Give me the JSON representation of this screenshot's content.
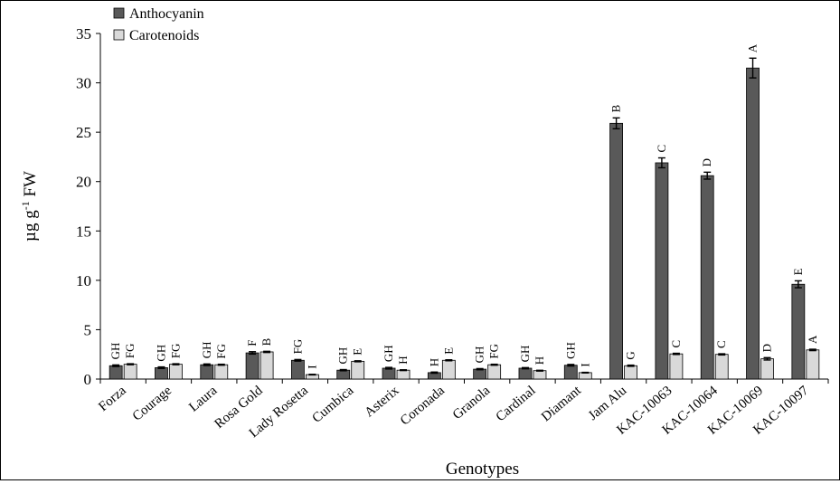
{
  "chart_data": {
    "type": "bar",
    "title": "",
    "xlabel": "Genotypes",
    "ylabel_main": "µg g",
    "ylabel_sup": "-1",
    "ylabel_tail": " FW",
    "ylim": [
      0,
      35
    ],
    "yticks": [
      0,
      5,
      10,
      15,
      20,
      25,
      30,
      35
    ],
    "grid": false,
    "legend_position": "top-left",
    "categories": [
      "Forza",
      "Courage",
      "Laura",
      "Rosa Gold",
      "Lady Rosetta",
      "Cumbica",
      "Asterix",
      "Coronada",
      "Granola",
      "Cardinal",
      "Diamant",
      "Jam Alu",
      "KAC-10063",
      "KAC-10064",
      "KAC-10069",
      "KAC-10097"
    ],
    "series": [
      {
        "name": "Anthocyanin",
        "color": "#595959",
        "values": [
          1.35,
          1.15,
          1.45,
          2.65,
          1.9,
          0.9,
          1.1,
          0.65,
          1.0,
          1.1,
          1.4,
          25.9,
          21.9,
          20.6,
          31.5,
          9.6
        ],
        "errors": [
          0.08,
          0.08,
          0.08,
          0.12,
          0.08,
          0.06,
          0.08,
          0.06,
          0.06,
          0.06,
          0.08,
          0.55,
          0.5,
          0.35,
          1.0,
          0.35
        ],
        "letters": [
          "GH",
          "GH",
          "GH",
          "F",
          "FG",
          "GH",
          "GH",
          "H",
          "GH",
          "GH",
          "GH",
          "B",
          "C",
          "D",
          "A",
          "E"
        ]
      },
      {
        "name": "Carotenoids",
        "color": "#d9d9d9",
        "values": [
          1.5,
          1.5,
          1.45,
          2.75,
          0.45,
          1.8,
          0.9,
          1.9,
          1.45,
          0.85,
          0.65,
          1.35,
          2.55,
          2.5,
          2.05,
          2.95
        ],
        "errors": [
          0.05,
          0.05,
          0.05,
          0.06,
          0.03,
          0.05,
          0.04,
          0.05,
          0.05,
          0.04,
          0.03,
          0.06,
          0.06,
          0.06,
          0.12,
          0.07
        ],
        "letters": [
          "FG",
          "FG",
          "FG",
          "B",
          "I",
          "E",
          "H",
          "E",
          "FG",
          "H",
          "I",
          "G",
          "C",
          "C",
          "D",
          "A"
        ]
      }
    ]
  }
}
